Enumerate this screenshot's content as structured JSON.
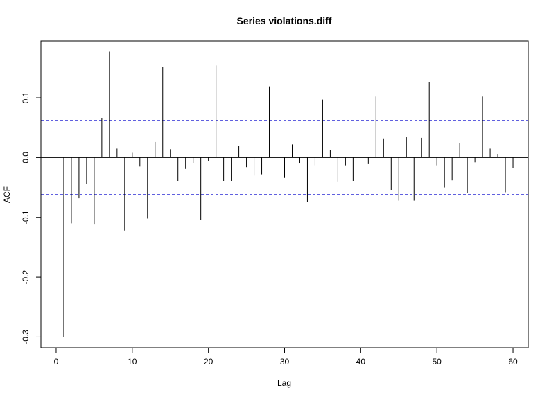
{
  "chart_data": {
    "type": "bar",
    "title": "Series violations.diff",
    "xlabel": "Lag",
    "ylabel": "ACF",
    "xlim": [
      -2,
      62
    ],
    "ylim": [
      -0.318,
      0.195
    ],
    "x_ticks": [
      0,
      10,
      20,
      30,
      40,
      50,
      60
    ],
    "y_ticks": [
      -0.3,
      -0.2,
      -0.1,
      0.0,
      0.1
    ],
    "y_tick_labels": [
      "-0.3",
      "-0.2",
      "-0.1",
      "0.0",
      "0.1"
    ],
    "confidence_bound": 0.062,
    "colors": {
      "bars": "#000000",
      "zero_line": "#000000",
      "bounds": "#0000cc"
    },
    "lags": [
      1,
      2,
      3,
      4,
      5,
      6,
      7,
      8,
      9,
      10,
      11,
      12,
      13,
      14,
      15,
      16,
      17,
      18,
      19,
      20,
      21,
      22,
      23,
      24,
      25,
      26,
      27,
      28,
      29,
      30,
      31,
      32,
      33,
      34,
      35,
      36,
      37,
      38,
      39,
      40,
      41,
      42,
      43,
      44,
      45,
      46,
      47,
      48,
      49,
      50,
      51,
      52,
      53,
      54,
      55,
      56,
      57,
      58,
      59,
      60
    ],
    "values": [
      -0.3,
      -0.11,
      -0.068,
      -0.044,
      -0.112,
      0.066,
      0.177,
      0.015,
      -0.122,
      0.008,
      -0.015,
      -0.102,
      0.026,
      0.152,
      0.014,
      -0.04,
      -0.019,
      -0.01,
      -0.104,
      -0.006,
      0.154,
      -0.039,
      -0.039,
      0.019,
      -0.016,
      -0.03,
      -0.028,
      0.119,
      -0.008,
      -0.034,
      0.022,
      -0.01,
      -0.074,
      -0.013,
      0.097,
      0.013,
      -0.041,
      -0.013,
      -0.04,
      0.0,
      -0.011,
      0.102,
      0.032,
      -0.054,
      -0.072,
      0.034,
      -0.072,
      0.033,
      0.126,
      -0.013,
      -0.05,
      -0.038,
      0.024,
      -0.059,
      -0.008,
      0.102,
      0.015,
      0.005,
      -0.058,
      -0.018
    ]
  }
}
